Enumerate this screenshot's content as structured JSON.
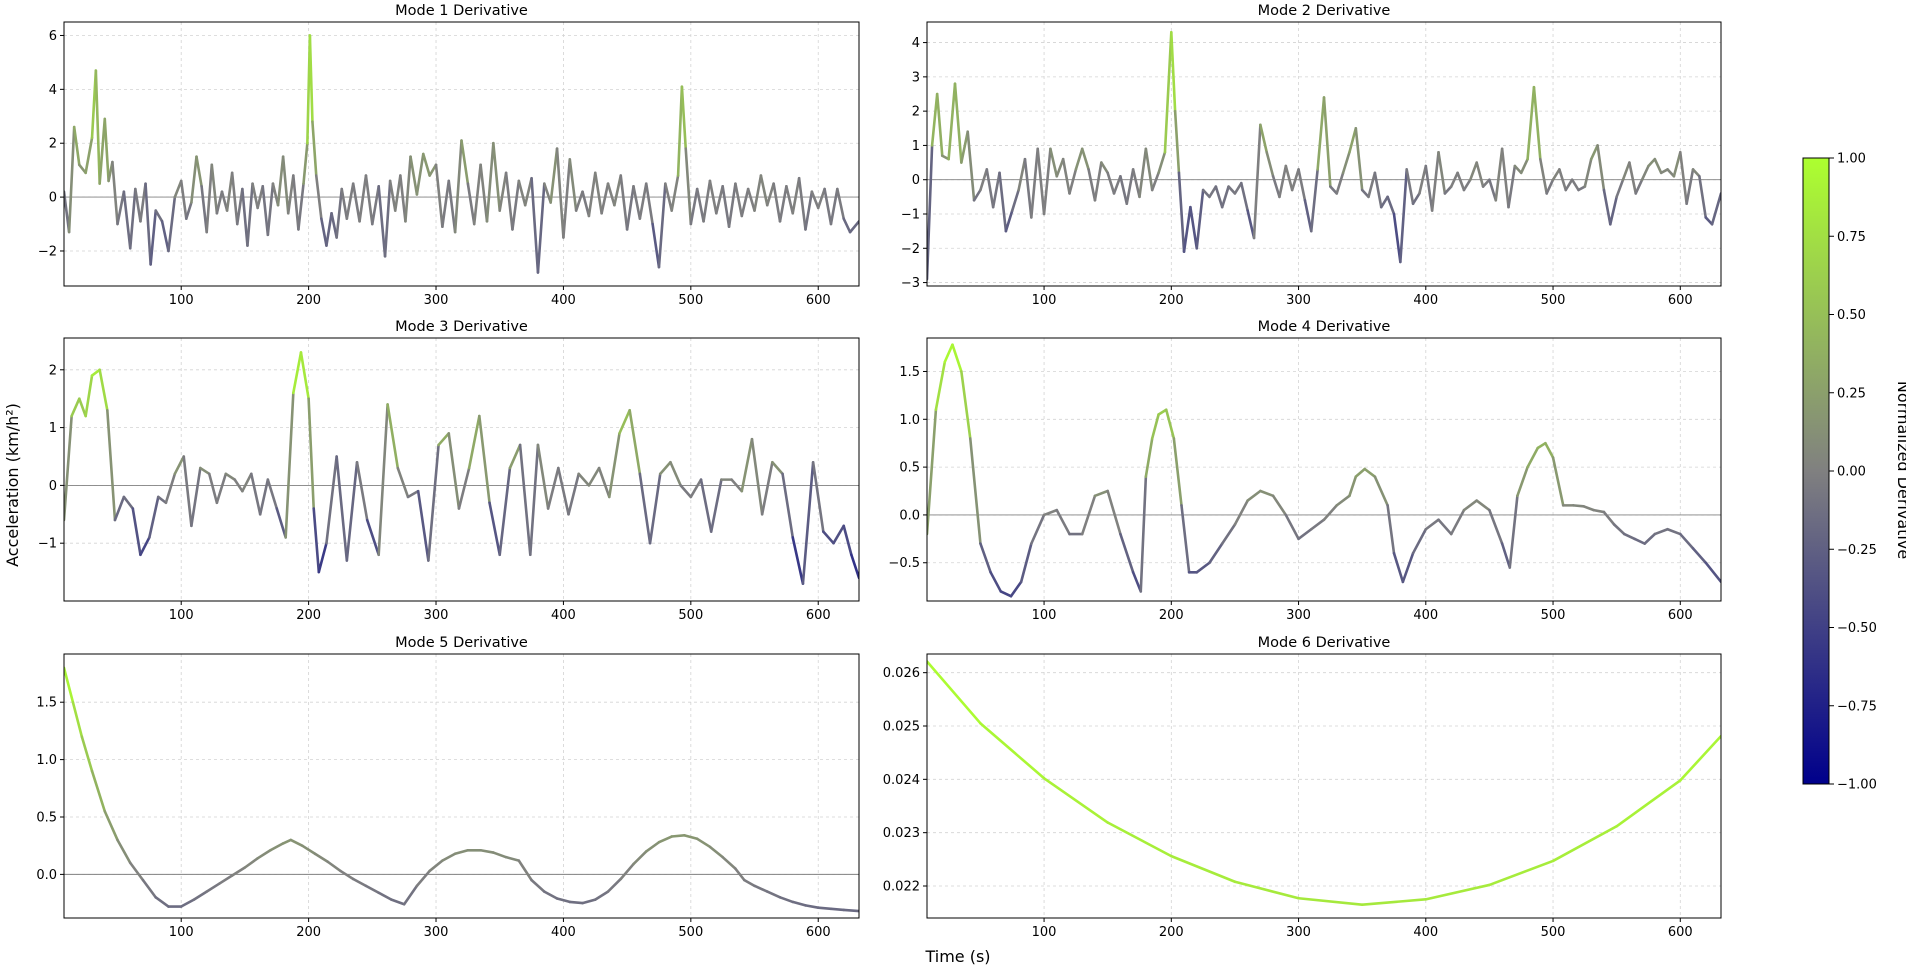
{
  "figure": {
    "ylabel": "Acceleration (km/h²)",
    "xlabel": "Time (s)",
    "colorbar": {
      "label": "Normalized Derivative",
      "ticks": [
        "1.00",
        "0.75",
        "0.50",
        "0.25",
        "0.00",
        "−0.25",
        "−0.50",
        "−0.75",
        "−1.00"
      ],
      "colors": {
        "high": "#adff2f",
        "mid": "#808080",
        "low": "#00008b"
      }
    }
  },
  "chart_data": [
    {
      "type": "line",
      "title": "Mode 1 Derivative",
      "xlim": [
        8,
        632
      ],
      "ylim": [
        -3.3,
        6.5
      ],
      "xticks": [
        100,
        200,
        300,
        400,
        500,
        600
      ],
      "xtick_labels": [
        "100",
        "200",
        "300",
        "400",
        "500",
        "600"
      ],
      "yticks": [
        -2,
        0,
        2,
        4,
        6
      ],
      "ytick_labels": [
        "−2",
        "0",
        "2",
        "4",
        "6"
      ],
      "x": [
        8,
        12,
        16,
        20,
        25,
        30,
        33,
        36,
        40,
        43,
        46,
        50,
        55,
        60,
        64,
        68,
        72,
        76,
        80,
        85,
        90,
        95,
        100,
        104,
        108,
        112,
        116,
        120,
        124,
        128,
        132,
        136,
        140,
        144,
        148,
        152,
        156,
        160,
        164,
        168,
        172,
        176,
        180,
        184,
        188,
        192,
        196,
        199,
        201,
        203,
        206,
        210,
        214,
        218,
        222,
        226,
        230,
        235,
        240,
        245,
        250,
        255,
        260,
        264,
        268,
        272,
        276,
        280,
        285,
        290,
        295,
        300,
        305,
        310,
        315,
        320,
        325,
        330,
        335,
        340,
        345,
        350,
        355,
        360,
        365,
        370,
        375,
        380,
        385,
        390,
        395,
        400,
        405,
        410,
        415,
        420,
        425,
        430,
        435,
        440,
        445,
        450,
        455,
        460,
        465,
        470,
        475,
        480,
        485,
        490,
        493,
        496,
        500,
        505,
        510,
        515,
        520,
        525,
        530,
        535,
        540,
        545,
        550,
        555,
        560,
        565,
        570,
        575,
        580,
        585,
        590,
        595,
        600,
        605,
        610,
        615,
        620,
        625,
        632
      ],
      "y": [
        0.2,
        -1.3,
        2.6,
        1.2,
        0.9,
        2.2,
        4.7,
        0.5,
        2.9,
        0.6,
        1.3,
        -1.0,
        0.2,
        -1.9,
        0.3,
        -0.9,
        0.5,
        -2.5,
        -0.5,
        -0.9,
        -2.0,
        0.0,
        0.6,
        -0.8,
        -0.2,
        1.5,
        0.4,
        -1.3,
        1.2,
        -0.6,
        0.2,
        -0.5,
        0.9,
        -1.0,
        0.3,
        -1.8,
        0.5,
        -0.4,
        0.4,
        -1.4,
        0.5,
        -0.3,
        1.5,
        -0.6,
        0.8,
        -1.2,
        0.5,
        2.0,
        6.0,
        2.8,
        0.8,
        -0.8,
        -1.8,
        -0.6,
        -1.5,
        0.3,
        -0.8,
        0.5,
        -0.9,
        0.8,
        -1.0,
        0.4,
        -2.2,
        0.6,
        -0.5,
        0.8,
        -0.9,
        1.5,
        0.1,
        1.6,
        0.8,
        1.2,
        -1.1,
        0.6,
        -1.3,
        2.1,
        0.5,
        -1.0,
        1.2,
        -0.9,
        2.0,
        -0.5,
        0.9,
        -1.2,
        0.6,
        -0.3,
        0.7,
        -2.8,
        0.5,
        -0.2,
        1.8,
        -1.5,
        1.4,
        -0.5,
        0.2,
        -0.7,
        0.9,
        -0.6,
        0.5,
        -0.3,
        0.8,
        -1.2,
        0.4,
        -0.8,
        0.5,
        -1.0,
        -2.6,
        0.5,
        -0.5,
        0.8,
        4.1,
        1.8,
        -1.0,
        0.3,
        -0.9,
        0.6,
        -0.6,
        0.4,
        -1.1,
        0.5,
        -0.7,
        0.3,
        -0.5,
        0.8,
        -0.3,
        0.5,
        -0.9,
        0.4,
        -0.6,
        0.7,
        -1.2,
        0.2,
        -0.4,
        0.3,
        -1.0,
        0.3,
        -0.8,
        -1.3,
        -0.9
      ]
    },
    {
      "type": "line",
      "title": "Mode 2 Derivative",
      "xlim": [
        8,
        632
      ],
      "ylim": [
        -3.1,
        4.6
      ],
      "xticks": [
        100,
        200,
        300,
        400,
        500,
        600
      ],
      "xtick_labels": [
        "100",
        "200",
        "300",
        "400",
        "500",
        "600"
      ],
      "yticks": [
        -3,
        -2,
        -1,
        0,
        1,
        2,
        3,
        4
      ],
      "ytick_labels": [
        "−3",
        "−2",
        "−1",
        "0",
        "1",
        "2",
        "3",
        "4"
      ],
      "x": [
        8,
        12,
        16,
        20,
        25,
        30,
        35,
        40,
        45,
        50,
        55,
        60,
        65,
        70,
        75,
        80,
        85,
        90,
        95,
        100,
        105,
        110,
        115,
        120,
        125,
        130,
        135,
        140,
        145,
        150,
        155,
        160,
        165,
        170,
        175,
        180,
        185,
        190,
        195,
        200,
        203,
        206,
        210,
        215,
        220,
        225,
        230,
        235,
        240,
        245,
        250,
        255,
        260,
        265,
        270,
        275,
        280,
        285,
        290,
        295,
        300,
        305,
        310,
        315,
        320,
        325,
        330,
        335,
        340,
        345,
        350,
        355,
        360,
        365,
        370,
        375,
        380,
        385,
        390,
        395,
        400,
        405,
        410,
        415,
        420,
        425,
        430,
        435,
        440,
        445,
        450,
        455,
        460,
        465,
        470,
        475,
        480,
        485,
        490,
        495,
        500,
        505,
        510,
        515,
        520,
        525,
        530,
        535,
        540,
        545,
        550,
        555,
        560,
        565,
        570,
        575,
        580,
        585,
        590,
        595,
        600,
        605,
        610,
        615,
        620,
        625,
        632
      ],
      "y": [
        -2.9,
        1.0,
        2.5,
        0.7,
        0.6,
        2.8,
        0.5,
        1.4,
        -0.6,
        -0.3,
        0.3,
        -0.8,
        0.2,
        -1.5,
        -0.9,
        -0.3,
        0.6,
        -1.1,
        0.9,
        -1.0,
        0.9,
        0.1,
        0.6,
        -0.4,
        0.3,
        0.9,
        0.3,
        -0.6,
        0.5,
        0.2,
        -0.4,
        0.1,
        -0.7,
        0.3,
        -0.5,
        0.9,
        -0.3,
        0.2,
        0.8,
        4.3,
        2.0,
        0.2,
        -2.1,
        -0.8,
        -2.0,
        -0.3,
        -0.5,
        -0.2,
        -0.8,
        -0.2,
        -0.4,
        -0.1,
        -0.9,
        -1.7,
        1.6,
        0.8,
        0.1,
        -0.5,
        0.4,
        -0.3,
        0.3,
        -0.6,
        -1.5,
        0.3,
        2.4,
        -0.2,
        -0.4,
        0.2,
        0.8,
        1.5,
        -0.3,
        -0.5,
        0.2,
        -0.8,
        -0.5,
        -1.0,
        -2.4,
        0.3,
        -0.7,
        -0.4,
        0.4,
        -0.9,
        0.8,
        -0.4,
        -0.2,
        0.2,
        -0.3,
        0.0,
        0.5,
        -0.2,
        0.0,
        -0.6,
        0.9,
        -0.8,
        0.4,
        0.2,
        0.6,
        2.7,
        0.6,
        -0.4,
        0.0,
        0.3,
        -0.3,
        0.0,
        -0.3,
        -0.2,
        0.6,
        1.0,
        -0.3,
        -1.3,
        -0.5,
        0.0,
        0.5,
        -0.4,
        0.0,
        0.4,
        0.6,
        0.2,
        0.3,
        0.1,
        0.8,
        -0.7,
        0.3,
        0.1,
        -1.1,
        -1.3,
        -0.4
      ]
    },
    {
      "type": "line",
      "title": "Mode 3 Derivative",
      "xlim": [
        8,
        632
      ],
      "ylim": [
        -2.0,
        2.55
      ],
      "xticks": [
        100,
        200,
        300,
        400,
        500,
        600
      ],
      "xtick_labels": [
        "100",
        "200",
        "300",
        "400",
        "500",
        "600"
      ],
      "yticks": [
        -1,
        0,
        1,
        2
      ],
      "ytick_labels": [
        "−1",
        "0",
        "1",
        "2"
      ],
      "x": [
        8,
        14,
        20,
        25,
        30,
        36,
        42,
        48,
        55,
        62,
        68,
        75,
        82,
        88,
        95,
        102,
        108,
        115,
        122,
        128,
        135,
        142,
        148,
        155,
        162,
        168,
        175,
        182,
        188,
        194,
        200,
        204,
        208,
        214,
        222,
        230,
        238,
        246,
        255,
        262,
        270,
        278,
        286,
        294,
        302,
        310,
        318,
        326,
        334,
        342,
        350,
        358,
        366,
        374,
        380,
        388,
        396,
        404,
        412,
        420,
        428,
        436,
        444,
        452,
        460,
        468,
        476,
        484,
        492,
        500,
        508,
        516,
        524,
        532,
        540,
        548,
        556,
        564,
        572,
        580,
        588,
        596,
        604,
        612,
        620,
        626,
        632
      ],
      "y": [
        -0.6,
        1.2,
        1.5,
        1.2,
        1.9,
        2.0,
        1.3,
        -0.6,
        -0.2,
        -0.4,
        -1.2,
        -0.9,
        -0.2,
        -0.3,
        0.2,
        0.5,
        -0.7,
        0.3,
        0.2,
        -0.3,
        0.2,
        0.1,
        -0.1,
        0.2,
        -0.5,
        0.1,
        -0.4,
        -0.9,
        1.6,
        2.3,
        1.5,
        -0.4,
        -1.5,
        -1.0,
        0.5,
        -1.3,
        0.4,
        -0.6,
        -1.2,
        1.4,
        0.3,
        -0.2,
        -0.1,
        -1.3,
        0.7,
        0.9,
        -0.4,
        0.3,
        1.2,
        -0.3,
        -1.2,
        0.3,
        0.7,
        -1.2,
        0.7,
        -0.4,
        0.3,
        -0.5,
        0.2,
        0.0,
        0.3,
        -0.2,
        0.9,
        1.3,
        0.2,
        -1.0,
        0.2,
        0.4,
        0.0,
        -0.2,
        0.1,
        -0.8,
        0.1,
        0.1,
        -0.1,
        0.8,
        -0.5,
        0.4,
        0.2,
        -0.9,
        -1.7,
        0.4,
        -0.8,
        -1.0,
        -0.7,
        -1.2,
        -1.6
      ]
    },
    {
      "type": "line",
      "title": "Mode 4 Derivative",
      "xlim": [
        8,
        632
      ],
      "ylim": [
        -0.9,
        1.85
      ],
      "xticks": [
        100,
        200,
        300,
        400,
        500,
        600
      ],
      "xtick_labels": [
        "100",
        "200",
        "300",
        "400",
        "500",
        "600"
      ],
      "yticks": [
        -0.5,
        0.0,
        0.5,
        1.0,
        1.5
      ],
      "ytick_labels": [
        "−0.5",
        "0.0",
        "0.5",
        "1.0",
        "1.5"
      ],
      "x": [
        8,
        15,
        22,
        28,
        35,
        42,
        50,
        58,
        66,
        74,
        82,
        90,
        100,
        110,
        120,
        130,
        140,
        150,
        160,
        170,
        176,
        180,
        185,
        190,
        196,
        202,
        208,
        214,
        220,
        230,
        240,
        250,
        260,
        270,
        280,
        290,
        300,
        310,
        320,
        330,
        340,
        345,
        352,
        360,
        370,
        375,
        382,
        390,
        400,
        410,
        420,
        430,
        440,
        450,
        460,
        466,
        472,
        480,
        488,
        494,
        500,
        508,
        516,
        524,
        532,
        540,
        548,
        556,
        564,
        572,
        580,
        590,
        600,
        610,
        620,
        632
      ],
      "y": [
        -0.2,
        1.1,
        1.6,
        1.78,
        1.5,
        0.8,
        -0.3,
        -0.6,
        -0.8,
        -0.85,
        -0.7,
        -0.3,
        0.0,
        0.05,
        -0.2,
        -0.2,
        0.2,
        0.25,
        -0.2,
        -0.6,
        -0.8,
        0.4,
        0.8,
        1.05,
        1.1,
        0.8,
        0.1,
        -0.6,
        -0.6,
        -0.5,
        -0.3,
        -0.1,
        0.15,
        0.25,
        0.2,
        0.0,
        -0.25,
        -0.15,
        -0.05,
        0.1,
        0.2,
        0.4,
        0.48,
        0.4,
        0.1,
        -0.4,
        -0.7,
        -0.4,
        -0.15,
        -0.05,
        -0.2,
        0.05,
        0.15,
        0.05,
        -0.3,
        -0.55,
        0.2,
        0.5,
        0.7,
        0.75,
        0.6,
        0.1,
        0.1,
        0.09,
        0.05,
        0.03,
        -0.1,
        -0.2,
        -0.25,
        -0.3,
        -0.2,
        -0.15,
        -0.2,
        -0.35,
        -0.5,
        -0.7
      ]
    },
    {
      "type": "line",
      "title": "Mode 5 Derivative",
      "xlim": [
        8,
        632
      ],
      "ylim": [
        -0.38,
        1.92
      ],
      "xticks": [
        100,
        200,
        300,
        400,
        500,
        600
      ],
      "xtick_labels": [
        "100",
        "200",
        "300",
        "400",
        "500",
        "600"
      ],
      "yticks": [
        0.0,
        0.5,
        1.0,
        1.5
      ],
      "ytick_labels": [
        "0.0",
        "0.5",
        "1.0",
        "1.5"
      ],
      "x": [
        8,
        15,
        22,
        30,
        40,
        50,
        60,
        70,
        80,
        90,
        100,
        110,
        120,
        130,
        140,
        150,
        160,
        170,
        180,
        186,
        195,
        205,
        215,
        225,
        235,
        245,
        255,
        265,
        275,
        285,
        295,
        305,
        315,
        325,
        335,
        345,
        355,
        365,
        375,
        385,
        395,
        405,
        415,
        425,
        435,
        445,
        455,
        465,
        475,
        485,
        495,
        505,
        515,
        525,
        535,
        542,
        550,
        560,
        570,
        580,
        590,
        600,
        610,
        620,
        632
      ],
      "y": [
        1.8,
        1.5,
        1.2,
        0.9,
        0.55,
        0.3,
        0.1,
        -0.05,
        -0.2,
        -0.28,
        -0.28,
        -0.22,
        -0.15,
        -0.08,
        -0.01,
        0.06,
        0.14,
        0.21,
        0.27,
        0.3,
        0.25,
        0.18,
        0.11,
        0.03,
        -0.04,
        -0.1,
        -0.16,
        -0.22,
        -0.26,
        -0.1,
        0.03,
        0.12,
        0.18,
        0.21,
        0.21,
        0.19,
        0.15,
        0.12,
        -0.05,
        -0.15,
        -0.21,
        -0.24,
        -0.25,
        -0.22,
        -0.15,
        -0.04,
        0.09,
        0.2,
        0.28,
        0.33,
        0.34,
        0.31,
        0.24,
        0.15,
        0.05,
        -0.05,
        -0.1,
        -0.15,
        -0.2,
        -0.24,
        -0.27,
        -0.29,
        -0.3,
        -0.31,
        -0.32
      ]
    },
    {
      "type": "line",
      "title": "Mode 6 Derivative",
      "xlim": [
        8,
        632
      ],
      "ylim": [
        0.0214,
        0.02635
      ],
      "xticks": [
        100,
        200,
        300,
        400,
        500,
        600
      ],
      "xtick_labels": [
        "100",
        "200",
        "300",
        "400",
        "500",
        "600"
      ],
      "yticks": [
        0.022,
        0.023,
        0.024,
        0.025,
        0.026
      ],
      "ytick_labels": [
        "0.022",
        "0.023",
        "0.024",
        "0.025",
        "0.026"
      ],
      "x": [
        8,
        50,
        100,
        150,
        200,
        250,
        300,
        350,
        400,
        450,
        500,
        550,
        600,
        632
      ],
      "y": [
        0.02621,
        0.02505,
        0.02402,
        0.02319,
        0.02256,
        0.02208,
        0.02177,
        0.02165,
        0.02175,
        0.02202,
        0.02247,
        0.02312,
        0.02398,
        0.02481
      ]
    }
  ]
}
